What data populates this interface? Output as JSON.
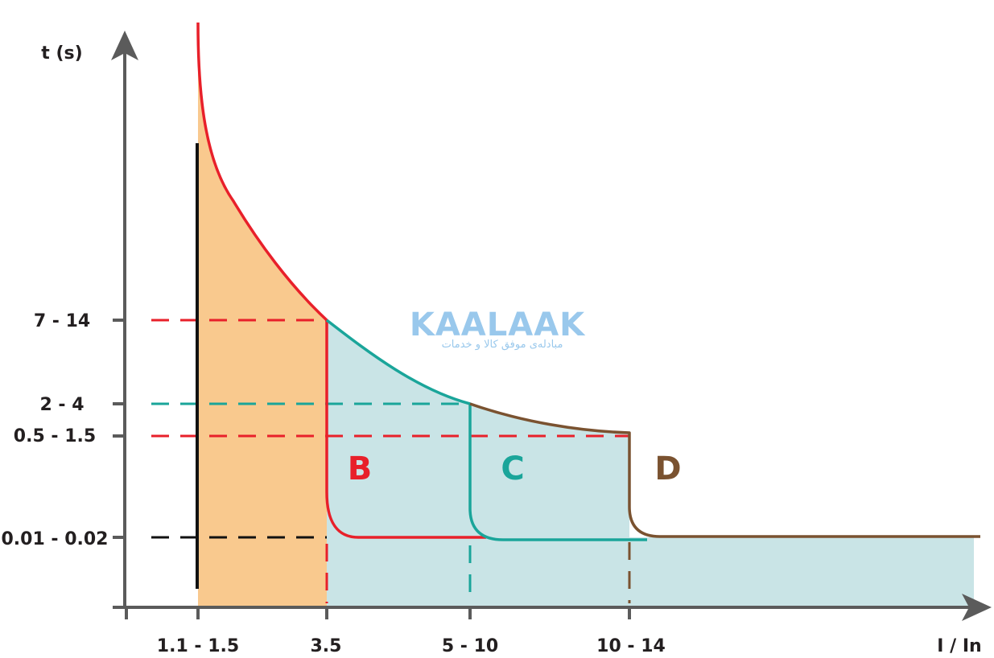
{
  "chart_data": {
    "type": "line",
    "title": "",
    "xlabel": "I / In",
    "ylabel": "t (s)",
    "x_ticks": [
      "1.1 - 1.5",
      "3.5",
      "5 - 10",
      "10 - 14"
    ],
    "y_ticks": [
      "7 - 14",
      "2 - 4",
      "0.5 - 1.5",
      "0.01 - 0.02"
    ],
    "grid": false,
    "series": [
      {
        "name": "B",
        "color": "#e8202a",
        "thermal_trip_time": "7 - 14",
        "magnetic_trip_current": "3.5",
        "instant_trip_time": "0.01 - 0.02"
      },
      {
        "name": "C",
        "color": "#1aa59a",
        "thermal_trip_time": "2 - 4",
        "magnetic_trip_current": "5 - 10",
        "instant_trip_time": "0.01 - 0.02"
      },
      {
        "name": "D",
        "color": "#7a5230",
        "thermal_trip_time": "0.5 - 1.5",
        "magnetic_trip_current": "10 - 14",
        "instant_trip_time": "0.01 - 0.02"
      }
    ],
    "regions": [
      {
        "name": "thermal",
        "color": "#f9c98e"
      },
      {
        "name": "magnetic",
        "color": "#c9e4e6"
      }
    ]
  },
  "watermark": {
    "brand": "KAALAAK",
    "tagline": "مبادله‌ی موفق کالا و خدمات"
  }
}
